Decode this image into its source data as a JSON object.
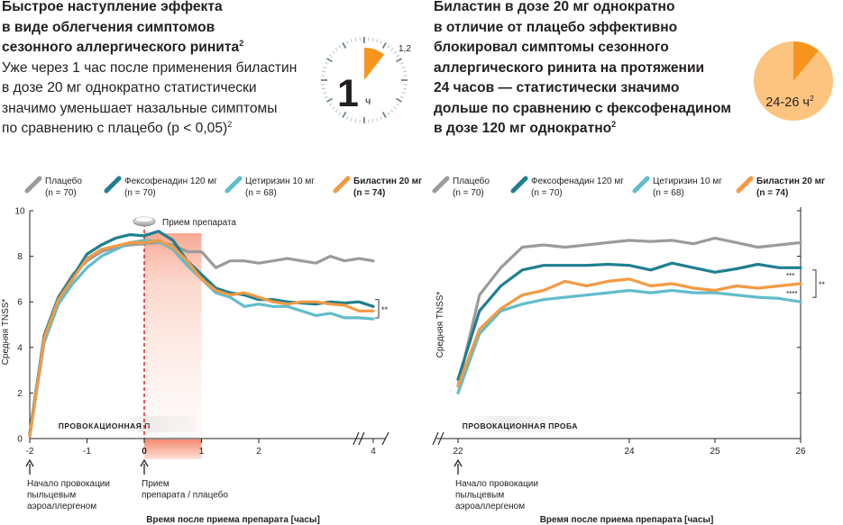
{
  "left_text": {
    "title_lines": [
      "Быстрое наступление эффекта",
      "в виде облегчения симптомов",
      "сезонного аллергического ринита"
    ],
    "title_sup": "2",
    "body_lines": [
      "Уже через 1 час после применения биластин",
      "в дозе 20 мг однократно статистически",
      "значимо уменьшает назальные симптомы",
      "по сравнению с плацебо (p < 0,05)"
    ],
    "body_sup": "2"
  },
  "right_text": {
    "lines": [
      "Биластин в дозе 20 мг однократно",
      "в отличие от плацебо эффективно",
      "блокировал симптомы сезонного",
      "аллергического ринита на протяжении",
      "24 часов — статистически значимо",
      "дольше по сравнению с фексофенадином",
      "в дозе 120 мг однократно"
    ],
    "sup": "2"
  },
  "clock_left": {
    "big": "1",
    "unit": "ч",
    "mark": "1,2",
    "fill_fraction": 0.1,
    "colors": {
      "wedge": "#f7941d",
      "ticks_minor": "#b9c3cc",
      "ticks_major": "#6d8591"
    }
  },
  "clock_right": {
    "label": "24-26 ч",
    "label_sup": "2",
    "wedge_fraction": 0.1,
    "colors": {
      "disk": "#fcc47f",
      "wedge": "#f7941d"
    }
  },
  "colors": {
    "placebo": "#9c9b9b",
    "fexofenadine": "#1f7f90",
    "cetirizine": "#62bccc",
    "bilastine": "#f39a44",
    "bilastine_text": "#ee7d31",
    "dash": "#d7232b"
  },
  "legend": [
    {
      "key": "placebo",
      "name": "Плацебо",
      "n": "(n = 70)"
    },
    {
      "key": "fexofenadine",
      "name": "Фексофенадин 120 мг",
      "n": "(n = 70)"
    },
    {
      "key": "cetirizine",
      "name": "Цетиризин 10 мг",
      "n": "(n = 68)"
    },
    {
      "key": "bilastine",
      "name": "Биластин 20 мг",
      "n": "(n = 74)"
    }
  ],
  "chart_data": [
    {
      "type": "line",
      "ylabel": "Средняя TNSS*",
      "xlabel": "Время после приема препарата [часы]",
      "ylim": [
        0,
        10
      ],
      "xlim": [
        -2,
        4
      ],
      "y_ticks": [
        "0",
        "2",
        "4",
        "6",
        "8",
        "10"
      ],
      "x_ticks": [
        {
          "value": -2,
          "label": "-2"
        },
        {
          "value": -1,
          "label": "-1"
        },
        {
          "value": 0,
          "label": "0"
        },
        {
          "value": 1,
          "label": "1"
        },
        {
          "value": 2,
          "label": "2"
        },
        {
          "value": 4,
          "label": "4"
        }
      ],
      "dose_line_at": 0,
      "dose_label": "Прием препарата",
      "provocation_label": "ПРОВОКАЦИОННАЯ П",
      "significance": "**",
      "significance_range": [
        5.3,
        6.1
      ],
      "annotations": [
        {
          "x": -2,
          "lines": [
            "Начало провокации",
            "пыльцевым",
            "аэроаллергеном"
          ]
        },
        {
          "x": 0,
          "lines": [
            "Прием",
            "препарата / плацебо"
          ]
        }
      ],
      "x": [
        -2,
        -1.75,
        -1.5,
        -1.25,
        -1,
        -0.75,
        -0.5,
        -0.25,
        0,
        0.25,
        0.5,
        0.75,
        1,
        1.25,
        1.5,
        1.75,
        2,
        2.25,
        2.5,
        2.75,
        3,
        3.25,
        3.5,
        3.75,
        4
      ],
      "series": [
        {
          "key": "placebo",
          "name": "Плацебо",
          "values": [
            0.2,
            4.5,
            6.2,
            7.2,
            7.8,
            8.2,
            8.4,
            8.5,
            8.55,
            8.6,
            8.5,
            8.2,
            8.2,
            7.5,
            7.8,
            7.8,
            7.7,
            7.8,
            7.9,
            7.8,
            7.7,
            8.0,
            7.8,
            7.9,
            7.8
          ]
        },
        {
          "key": "fexofenadine",
          "name": "Фексофенадин 120 мг",
          "values": [
            0.2,
            4.5,
            6.2,
            7.1,
            8.1,
            8.5,
            8.8,
            8.95,
            8.9,
            9.1,
            8.7,
            7.8,
            7.2,
            6.6,
            6.4,
            6.3,
            6.1,
            6.1,
            6.0,
            5.95,
            5.9,
            6.0,
            5.95,
            6.0,
            5.8
          ]
        },
        {
          "key": "cetirizine",
          "name": "Цетиризин 10 мг",
          "values": [
            0.1,
            4.2,
            5.9,
            6.8,
            7.5,
            8.0,
            8.3,
            8.6,
            8.7,
            8.65,
            8.3,
            7.6,
            7.0,
            6.4,
            6.2,
            5.8,
            5.9,
            5.8,
            5.8,
            5.6,
            5.4,
            5.5,
            5.3,
            5.3,
            5.25
          ]
        },
        {
          "key": "bilastine",
          "name": "Биластин 20 мг",
          "values": [
            0.1,
            4.4,
            6.1,
            7.0,
            7.9,
            8.3,
            8.45,
            8.6,
            8.6,
            8.7,
            8.4,
            7.8,
            7.0,
            6.5,
            6.3,
            6.4,
            6.2,
            6.0,
            5.9,
            6.0,
            6.0,
            5.9,
            5.85,
            5.6,
            5.6
          ]
        }
      ]
    },
    {
      "type": "line",
      "ylabel": "Средняя TNSS*",
      "xlabel": "Время после приема препарата [часы]",
      "xlim": [
        22,
        26
      ],
      "x_ticks": [
        {
          "value": 22,
          "label": "22"
        },
        {
          "value": 24,
          "label": "24"
        },
        {
          "value": 25,
          "label": "25"
        },
        {
          "value": 26,
          "label": "26"
        }
      ],
      "provocation_label": "ПРОВОКАЦИОННАЯ ПРОБА",
      "significance": "**",
      "significance_range": [
        6.2,
        7.4
      ],
      "stars": [
        {
          "series": "bilastine",
          "text": "***"
        },
        {
          "series": "cetirizine",
          "text": "****"
        }
      ],
      "annotations": [
        {
          "x": 22,
          "lines": [
            "Начало провокации",
            "пыльцевым",
            "аэроаллергеном"
          ]
        }
      ],
      "x": [
        22,
        22.25,
        22.5,
        22.75,
        23,
        23.25,
        23.5,
        23.75,
        24,
        24.25,
        24.5,
        24.75,
        25,
        25.25,
        25.5,
        25.75,
        26
      ],
      "series": [
        {
          "key": "placebo",
          "name": "Плацебо",
          "values": [
            2.3,
            6.3,
            7.5,
            8.4,
            8.5,
            8.4,
            8.5,
            8.6,
            8.7,
            8.65,
            8.7,
            8.55,
            8.8,
            8.6,
            8.4,
            8.5,
            8.6
          ]
        },
        {
          "key": "fexofenadine",
          "name": "Фексофенадин 120 мг",
          "values": [
            2.6,
            5.6,
            6.7,
            7.4,
            7.6,
            7.6,
            7.6,
            7.65,
            7.6,
            7.4,
            7.7,
            7.5,
            7.3,
            7.45,
            7.65,
            7.5,
            7.5
          ]
        },
        {
          "key": "cetirizine",
          "name": "Цетиризин 10 мг",
          "values": [
            2.0,
            4.6,
            5.6,
            5.9,
            6.1,
            6.2,
            6.3,
            6.4,
            6.5,
            6.4,
            6.5,
            6.4,
            6.4,
            6.3,
            6.2,
            6.15,
            6.0
          ]
        },
        {
          "key": "bilastine",
          "name": "Биластин 20 мг",
          "values": [
            2.3,
            4.8,
            5.7,
            6.3,
            6.5,
            6.9,
            6.7,
            6.9,
            7.0,
            6.7,
            6.8,
            6.6,
            6.5,
            6.7,
            6.6,
            6.7,
            6.8
          ]
        }
      ]
    }
  ]
}
